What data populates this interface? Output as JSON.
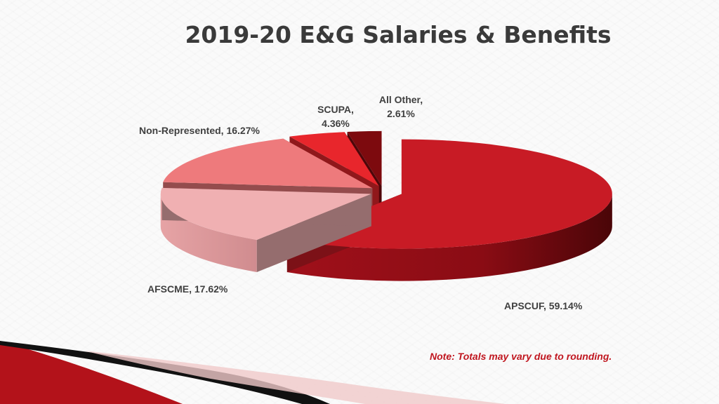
{
  "slide": {
    "title": "2019-20 E&G Salaries & Benefits",
    "note": "Note: Totals may vary due to rounding."
  },
  "colors": {
    "apscuf": "#c81b25",
    "afscme": "#f0b0b2",
    "non_represented": "#ee7a7c",
    "scupa": "#e8262c",
    "all_other": "#7d0a0e",
    "note": "#c0161f",
    "swoosh_dark": "#000000",
    "swoosh_red": "#b3121a"
  },
  "chart_data": {
    "type": "pie",
    "style": "3d-exploded",
    "title": "2019-20 E&G Salaries & Benefits",
    "slices": [
      {
        "label": "APSCUF",
        "value": 59.14,
        "display": "APSCUF, 59.14%"
      },
      {
        "label": "AFSCME",
        "value": 17.62,
        "display": "AFSCME, 17.62%"
      },
      {
        "label": "Non-Represented",
        "value": 16.27,
        "display": "Non-Represented, 16.27%"
      },
      {
        "label": "SCUPA",
        "value": 4.36,
        "display_line1": "SCUPA,",
        "display_line2": "4.36%"
      },
      {
        "label": "All Other",
        "value": 2.61,
        "display_line1": "All Other,",
        "display_line2": "2.61%"
      }
    ],
    "legend": "none",
    "data_labels": "outside"
  }
}
